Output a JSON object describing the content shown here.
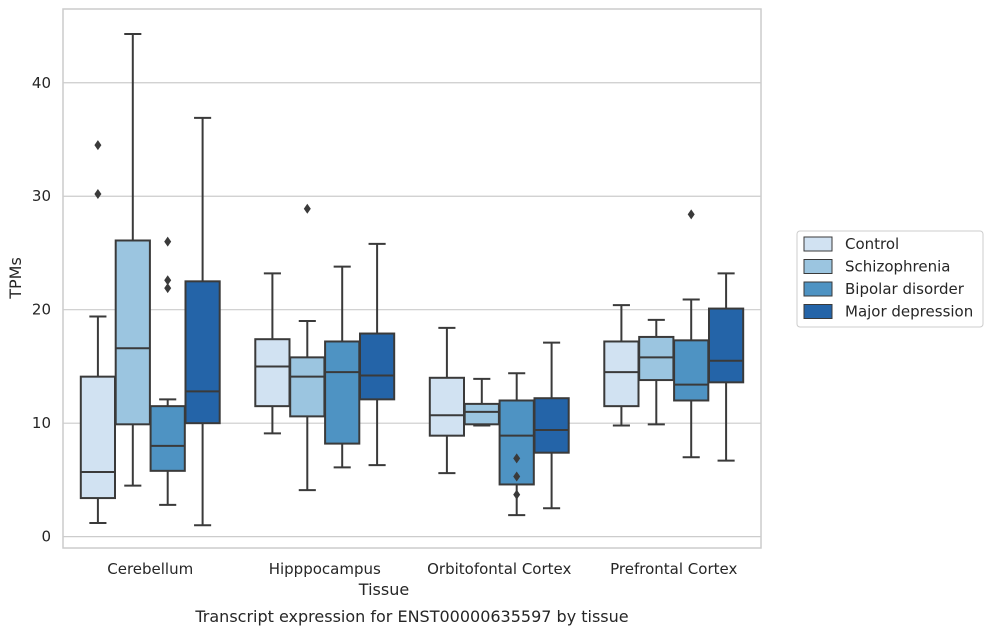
{
  "chart_data": {
    "type": "box",
    "xlabel": "Tissue",
    "ylabel": "TPMs",
    "caption": "Transcript expression for ENST00000635597 by tissue",
    "categories": [
      "Cerebellum",
      "Hipppocampus",
      "Orbitofontal Cortex",
      "Prefrontal Cortex"
    ],
    "ylim": [
      -1,
      46.5
    ],
    "yticks": [
      0,
      10,
      20,
      30,
      40
    ],
    "grid": "horizontal",
    "legend_position": "right",
    "colors": [
      "#d1e2f2",
      "#9bc5e0",
      "#4e93c3",
      "#2464a8"
    ],
    "series": [
      {
        "name": "Control",
        "boxes": [
          {
            "whisker_low": 1.2,
            "q1": 3.4,
            "median": 5.7,
            "q3": 14.1,
            "whisker_high": 19.4,
            "outliers": [
              30.2,
              34.5
            ]
          },
          {
            "whisker_low": 9.1,
            "q1": 11.5,
            "median": 15.0,
            "q3": 17.4,
            "whisker_high": 23.2,
            "outliers": []
          },
          {
            "whisker_low": 5.6,
            "q1": 8.9,
            "median": 10.7,
            "q3": 14.0,
            "whisker_high": 18.4,
            "outliers": []
          },
          {
            "whisker_low": 9.8,
            "q1": 11.5,
            "median": 14.5,
            "q3": 17.2,
            "whisker_high": 20.4,
            "outliers": []
          }
        ]
      },
      {
        "name": "Schizophrenia",
        "boxes": [
          {
            "whisker_low": 4.5,
            "q1": 9.9,
            "median": 16.6,
            "q3": 26.1,
            "whisker_high": 44.3,
            "outliers": []
          },
          {
            "whisker_low": 4.1,
            "q1": 10.6,
            "median": 14.1,
            "q3": 15.8,
            "whisker_high": 19.0,
            "outliers": [
              28.9
            ]
          },
          {
            "whisker_low": 9.8,
            "q1": 9.9,
            "median": 11.0,
            "q3": 11.7,
            "whisker_high": 13.9,
            "outliers": []
          },
          {
            "whisker_low": 9.9,
            "q1": 13.8,
            "median": 15.8,
            "q3": 17.6,
            "whisker_high": 19.1,
            "outliers": []
          }
        ]
      },
      {
        "name": "Bipolar disorder",
        "boxes": [
          {
            "whisker_low": 2.8,
            "q1": 5.8,
            "median": 8.0,
            "q3": 11.5,
            "whisker_high": 12.1,
            "outliers": [
              21.9,
              22.6,
              26.0
            ]
          },
          {
            "whisker_low": 6.1,
            "q1": 8.2,
            "median": 14.5,
            "q3": 17.2,
            "whisker_high": 23.8,
            "outliers": []
          },
          {
            "whisker_low": 1.9,
            "q1": 4.6,
            "median": 8.9,
            "q3": 12.0,
            "whisker_high": 14.4,
            "outliers": [
              3.7,
              5.3,
              6.9
            ]
          },
          {
            "whisker_low": 7.0,
            "q1": 12.0,
            "median": 13.4,
            "q3": 17.3,
            "whisker_high": 20.9,
            "outliers": [
              28.4
            ]
          }
        ]
      },
      {
        "name": "Major depression",
        "boxes": [
          {
            "whisker_low": 1.0,
            "q1": 10.0,
            "median": 12.8,
            "q3": 22.5,
            "whisker_high": 36.9,
            "outliers": []
          },
          {
            "whisker_low": 6.3,
            "q1": 12.1,
            "median": 14.2,
            "q3": 17.9,
            "whisker_high": 25.8,
            "outliers": []
          },
          {
            "whisker_low": 2.5,
            "q1": 7.4,
            "median": 9.4,
            "q3": 12.2,
            "whisker_high": 17.1,
            "outliers": []
          },
          {
            "whisker_low": 6.7,
            "q1": 13.6,
            "median": 15.5,
            "q3": 20.1,
            "whisker_high": 23.2,
            "outliers": []
          }
        ]
      }
    ]
  }
}
